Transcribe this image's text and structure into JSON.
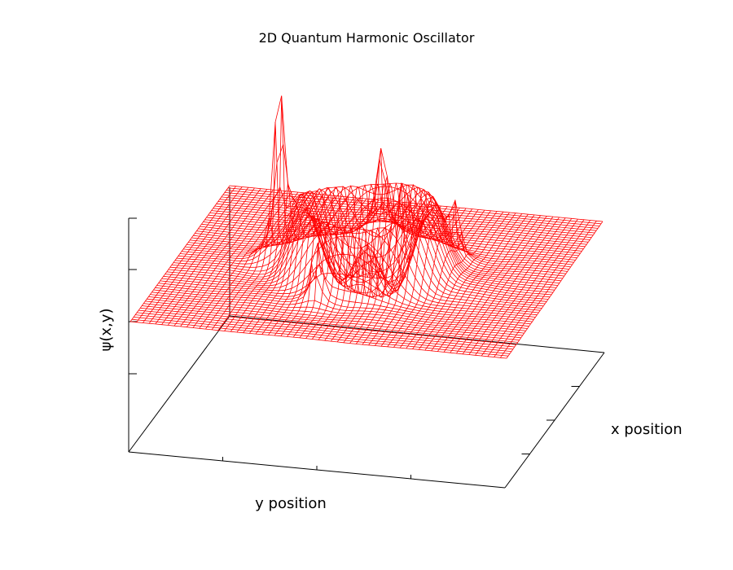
{
  "chart_data": {
    "type": "surface-3d",
    "title": "2D Quantum Harmonic Oscillator",
    "xlabel": "x position",
    "ylabel": "y position",
    "zlabel": "ψ(x,y)",
    "surface_color": "#ff0000",
    "axis_color": "#000000",
    "mesh": {
      "rows": 61,
      "cols": 61
    },
    "features": [
      {
        "kind": "ring-ridge",
        "u": 0.5,
        "v": 0.5,
        "height": 0.45
      },
      {
        "kind": "spike",
        "u": 0.26,
        "v": 0.52,
        "height": 1.0
      },
      {
        "kind": "spike",
        "u": 0.47,
        "v": 0.76,
        "height": 0.55
      },
      {
        "kind": "spike",
        "u": 0.7,
        "v": 0.63,
        "height": 0.3
      },
      {
        "kind": "spike",
        "u": 0.43,
        "v": 0.25,
        "height": 0.35
      },
      {
        "kind": "spike",
        "u": 0.62,
        "v": 0.4,
        "height": 0.28
      }
    ],
    "grid": false,
    "legend": "none"
  }
}
